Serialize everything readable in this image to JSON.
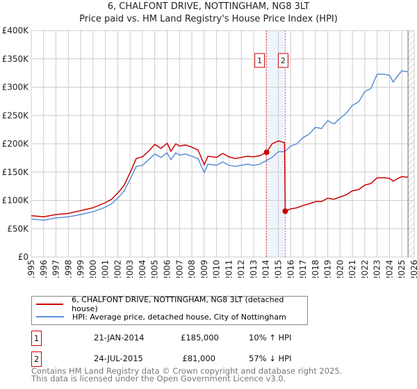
{
  "title": "6, CHALFONT DRIVE, NOTTINGHAM, NG8 3LT",
  "subtitle": "Price paid vs. HM Land Registry's House Price Index (HPI)",
  "chart_data": {
    "type": "line",
    "xlim": [
      1995,
      2026
    ],
    "ylim": [
      0,
      400000
    ],
    "yticks": [
      0,
      50000,
      100000,
      150000,
      200000,
      250000,
      300000,
      350000,
      400000
    ],
    "ytick_labels": [
      "£0",
      "£50K",
      "£100K",
      "£150K",
      "£200K",
      "£250K",
      "£300K",
      "£350K",
      "£400K"
    ],
    "xticks": [
      "1995",
      "1996",
      "1997",
      "1998",
      "1999",
      "2000",
      "2001",
      "2002",
      "2003",
      "2004",
      "2005",
      "2006",
      "2007",
      "2008",
      "2009",
      "2010",
      "2011",
      "2012",
      "2013",
      "2014",
      "2015",
      "2016",
      "2017",
      "2018",
      "2019",
      "2020",
      "2021",
      "2022",
      "2023",
      "2024",
      "2025",
      "2026"
    ],
    "grid": true,
    "shaded_range": [
      2014.05,
      2015.56
    ],
    "forecast_hatch_from": 2025.5,
    "colors": {
      "property": "#cc0000",
      "hpi": "#5b8fd4"
    },
    "series": [
      {
        "name": "6, CHALFONT DRIVE, NOTTINGHAM, NG8 3LT (detached house)",
        "color": "#cc0000",
        "x": [
          1995,
          1996,
          1997,
          1998,
          1999,
          2000,
          2001,
          2001.5,
          2002,
          2002.5,
          2003,
          2003.5,
          2004,
          2004.5,
          2005,
          2005.5,
          2006,
          2006.3,
          2006.7,
          2007,
          2007.5,
          2008,
          2008.5,
          2009,
          2009.3,
          2010,
          2010.5,
          2011,
          2011.5,
          2012,
          2012.5,
          2013,
          2013.5,
          2014.05,
          2014.5,
          2015,
          2015.5,
          2015.56,
          2016,
          2016.5,
          2017,
          2017.5,
          2018,
          2018.5,
          2019,
          2019.5,
          2020,
          2020.5,
          2021,
          2021.5,
          2022,
          2022.5,
          2023,
          2023.5,
          2024,
          2024.3,
          2024.7,
          2025,
          2025.5
        ],
        "y": [
          73000,
          71000,
          75000,
          77000,
          82000,
          87000,
          96000,
          102000,
          113000,
          126000,
          149000,
          174000,
          177000,
          187000,
          199000,
          192000,
          201000,
          187000,
          200000,
          196000,
          198000,
          194000,
          189000,
          163000,
          178000,
          176000,
          183000,
          177000,
          174000,
          176000,
          178000,
          177000,
          179000,
          185000,
          200000,
          205000,
          202000,
          81000,
          85000,
          87000,
          91000,
          94000,
          98000,
          98000,
          104000,
          102000,
          106000,
          110000,
          117000,
          119000,
          127000,
          130000,
          140000,
          140000,
          139000,
          134000,
          139000,
          142000,
          141000
        ]
      },
      {
        "name": "HPI: Average price, detached house, City of Nottingham",
        "color": "#5b8fd4",
        "x": [
          1995,
          1996,
          1997,
          1998,
          1999,
          2000,
          2001,
          2001.5,
          2002,
          2002.5,
          2003,
          2003.5,
          2004,
          2004.5,
          2005,
          2005.5,
          2006,
          2006.3,
          2006.7,
          2007,
          2007.5,
          2008,
          2008.5,
          2009,
          2009.3,
          2010,
          2010.5,
          2011,
          2011.5,
          2012,
          2012.5,
          2013,
          2013.5,
          2014,
          2014.5,
          2015,
          2015.5,
          2016,
          2016.5,
          2017,
          2017.5,
          2018,
          2018.5,
          2019,
          2019.5,
          2020,
          2020.5,
          2021,
          2021.5,
          2022,
          2022.5,
          2023,
          2023.5,
          2024,
          2024.3,
          2024.7,
          2025,
          2025.5
        ],
        "y": [
          67000,
          65000,
          69000,
          71000,
          75000,
          80000,
          88000,
          94000,
          104000,
          116000,
          137000,
          160000,
          162000,
          172000,
          182000,
          176000,
          184000,
          172000,
          184000,
          180000,
          182000,
          178000,
          174000,
          149000,
          164000,
          162000,
          168000,
          162000,
          160000,
          162000,
          164000,
          162000,
          164000,
          170000,
          176000,
          186000,
          186000,
          196000,
          200000,
          211000,
          217000,
          229000,
          227000,
          241000,
          235000,
          245000,
          254000,
          268000,
          274000,
          292000,
          298000,
          323000,
          323000,
          321000,
          309000,
          321000,
          329000,
          327000
        ]
      }
    ],
    "annotations": [
      {
        "label": "1",
        "x": 2014.05,
        "y": 185000
      },
      {
        "label": "2",
        "x": 2015.56,
        "y": 81000
      }
    ]
  },
  "legend": [
    {
      "label": "6, CHALFONT DRIVE, NOTTINGHAM, NG8 3LT (detached house)"
    },
    {
      "label": "HPI: Average price, detached house, City of Nottingham"
    }
  ],
  "transactions": [
    {
      "num": "1",
      "date": "21-JAN-2014",
      "price": "£185,000",
      "hpi": "10% ↑ HPI"
    },
    {
      "num": "2",
      "date": "24-JUL-2015",
      "price": "£81,000",
      "hpi": "57% ↓ HPI"
    }
  ],
  "footer": [
    "Contains HM Land Registry data © Crown copyright and database right 2025.",
    "This data is licensed under the Open Government Licence v3.0."
  ]
}
